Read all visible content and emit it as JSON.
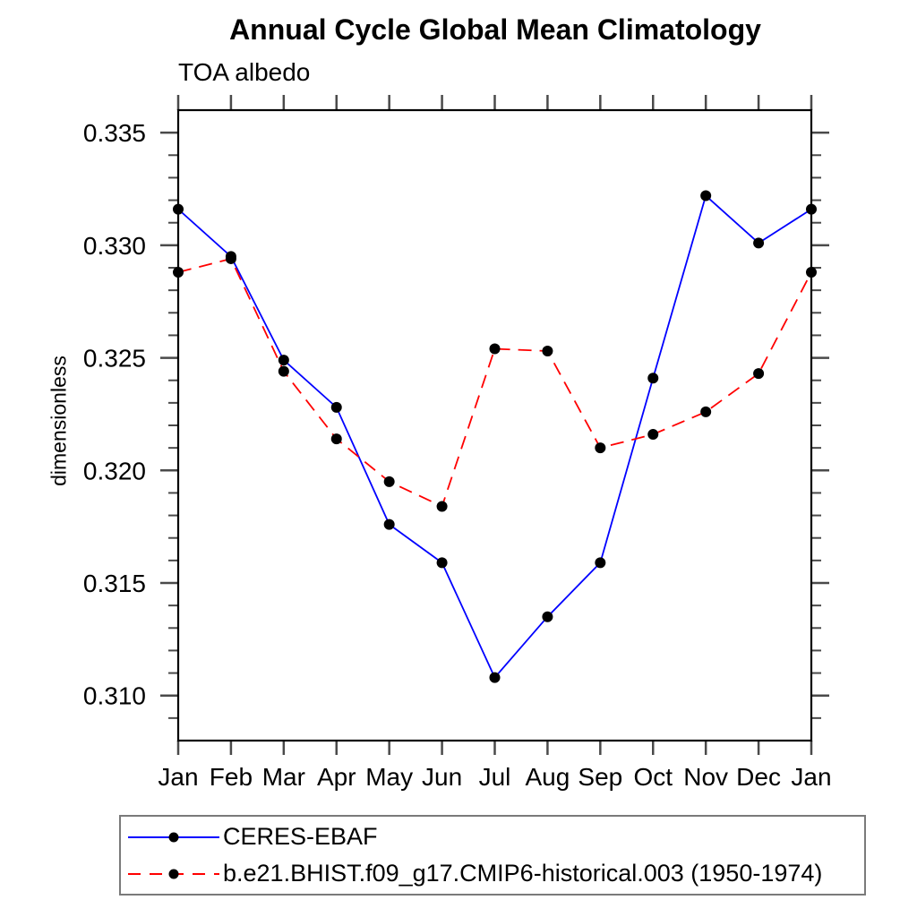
{
  "title": "Annual Cycle Global Mean Climatology",
  "subtitle": "TOA albedo",
  "ylabel": "dimensionless",
  "chart_data": {
    "type": "line",
    "categories": [
      "Jan",
      "Feb",
      "Mar",
      "Apr",
      "May",
      "Jun",
      "Jul",
      "Aug",
      "Sep",
      "Oct",
      "Nov",
      "Dec",
      "Jan"
    ],
    "series": [
      {
        "name": "CERES-EBAF",
        "color": "#0000ff",
        "line_style": "solid",
        "marker": "filled-circle",
        "marker_color": "#000000",
        "values": [
          0.3316,
          0.3295,
          0.3249,
          0.3228,
          0.3176,
          0.3159,
          0.3108,
          0.3135,
          0.3159,
          0.3241,
          0.3322,
          0.3301,
          0.3316
        ]
      },
      {
        "name": "b.e21.BHIST.f09_g17.CMIP6-historical.003 (1950-1974)",
        "color": "#ff0000",
        "line_style": "dashed",
        "marker": "filled-circle",
        "marker_color": "#000000",
        "values": [
          0.3288,
          0.3294,
          0.3244,
          0.3214,
          0.3195,
          0.3184,
          0.3254,
          0.3253,
          0.321,
          0.3216,
          0.3226,
          0.3243,
          0.3288
        ]
      }
    ],
    "ylim": [
      0.308,
      0.336
    ],
    "yticks_major": [
      0.31,
      0.315,
      0.32,
      0.325,
      0.33,
      0.335
    ],
    "ytick_labels": [
      "0.310",
      "0.315",
      "0.320",
      "0.325",
      "0.330",
      "0.335"
    ],
    "y_minor_step": 0.001,
    "grid": false,
    "legend_position": "bottom",
    "axis_color": "#000000",
    "tick_color": "#4a4a4a"
  }
}
